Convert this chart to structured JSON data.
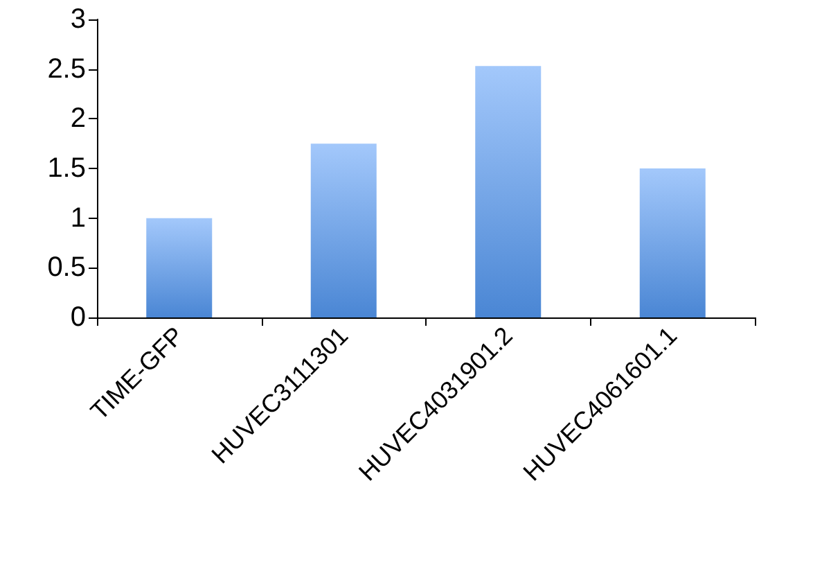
{
  "chart_data": {
    "type": "bar",
    "categories": [
      "TIME-GFP",
      "HUVEC3111301",
      "HUVEC4031901.2",
      "HUVEC4061601.1"
    ],
    "values": [
      1,
      1.75,
      2.53,
      1.5
    ],
    "color": "#4a86d4",
    "ylim": [
      0,
      3
    ],
    "yticks": [
      0,
      0.5,
      1,
      1.5,
      2,
      2.5,
      3
    ]
  }
}
